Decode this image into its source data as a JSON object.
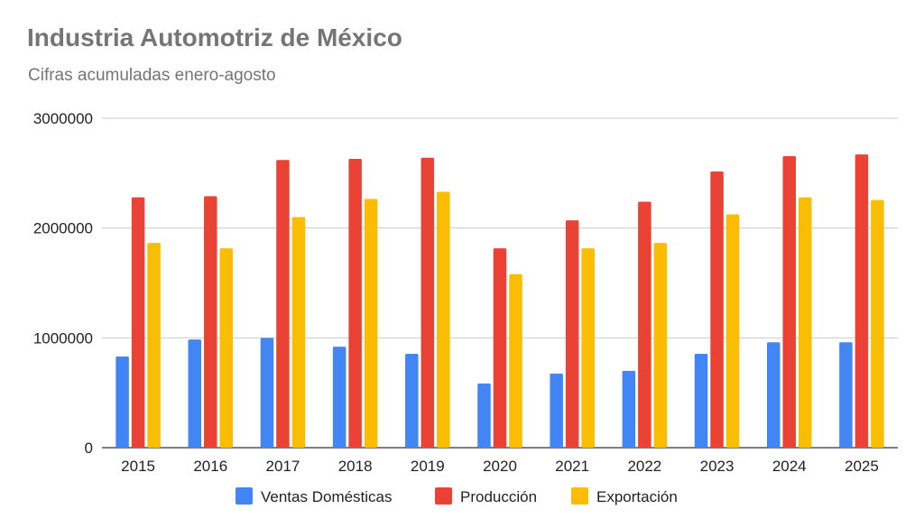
{
  "chart_data": {
    "type": "bar",
    "title": "Industria Automotriz de México",
    "subtitle": "Cifras acumuladas enero-agosto",
    "xlabel": "",
    "ylabel": "",
    "ylim": [
      0,
      3000000
    ],
    "yticks": [
      "0",
      "1000000",
      "2000000",
      "3000000"
    ],
    "grid": true,
    "legend_position": "bottom",
    "categories": [
      "2015",
      "2016",
      "2017",
      "2018",
      "2019",
      "2020",
      "2021",
      "2022",
      "2023",
      "2024",
      "2025"
    ],
    "series": [
      {
        "name": "Ventas Domésticas",
        "color": "#4285f4",
        "values": [
          830000,
          985000,
          1000000,
          920000,
          855000,
          585000,
          675000,
          700000,
          855000,
          960000,
          960000
        ]
      },
      {
        "name": "Producción",
        "color": "#ea4335",
        "values": [
          2280000,
          2290000,
          2620000,
          2630000,
          2640000,
          1815000,
          2070000,
          2240000,
          2515000,
          2655000,
          2670000
        ]
      },
      {
        "name": "Exportación",
        "color": "#fbbc04",
        "values": [
          1865000,
          1815000,
          2100000,
          2265000,
          2330000,
          1580000,
          1815000,
          1865000,
          2125000,
          2280000,
          2255000
        ]
      }
    ]
  }
}
